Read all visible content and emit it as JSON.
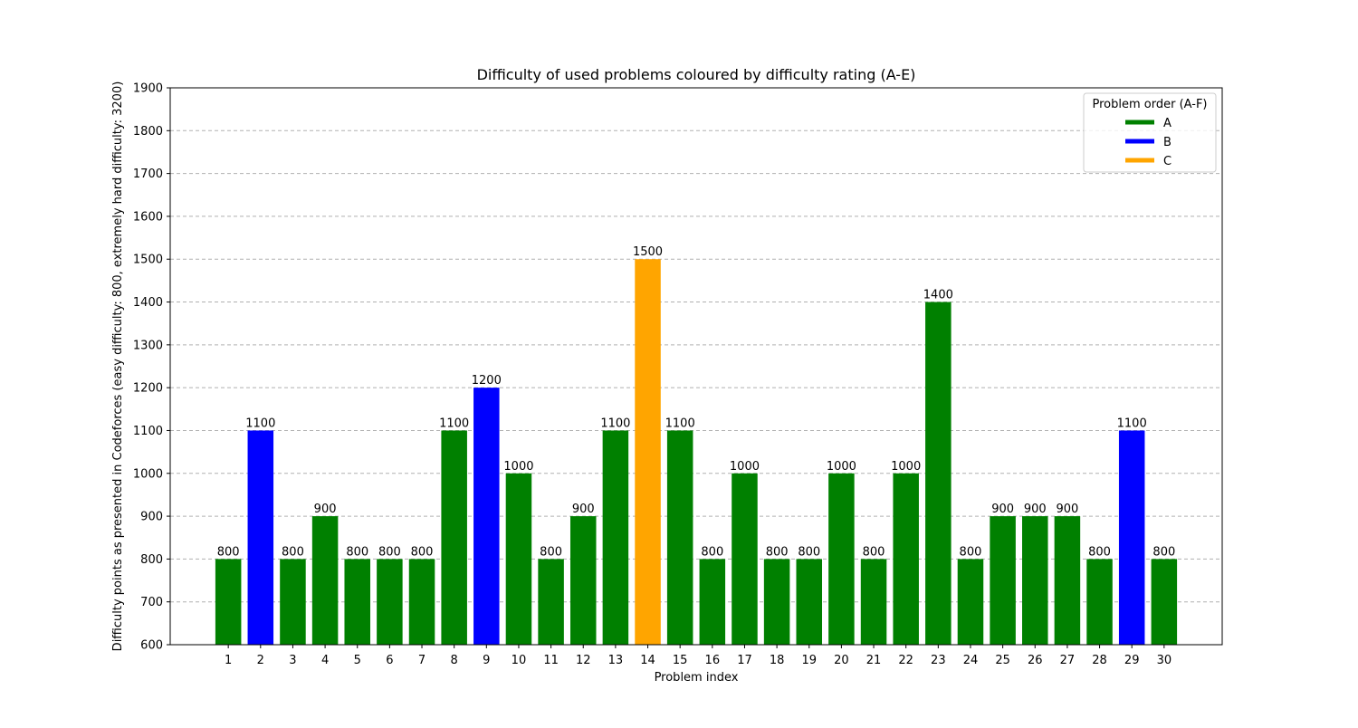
{
  "chart_data": {
    "type": "bar",
    "title": "Difficulty of used problems coloured by difficulty rating (A-E)",
    "xlabel": "Problem index",
    "ylabel": "Difficulty points as presented in Codeforces (easy difficulty: 800, extremely hard difficulty: 3200)",
    "ylim": [
      600,
      1900
    ],
    "yticks": [
      600,
      700,
      800,
      900,
      1000,
      1100,
      1200,
      1300,
      1400,
      1500,
      1600,
      1700,
      1800,
      1900
    ],
    "grid": "y-dashed",
    "categories": [
      "1",
      "2",
      "3",
      "4",
      "5",
      "6",
      "7",
      "8",
      "9",
      "10",
      "11",
      "12",
      "13",
      "14",
      "15",
      "16",
      "17",
      "18",
      "19",
      "20",
      "21",
      "22",
      "23",
      "24",
      "25",
      "26",
      "27",
      "28",
      "29",
      "30"
    ],
    "values": [
      800,
      1100,
      800,
      900,
      800,
      800,
      800,
      1100,
      1200,
      1000,
      800,
      900,
      1100,
      1500,
      1100,
      800,
      1000,
      800,
      800,
      1000,
      800,
      1000,
      1400,
      800,
      900,
      900,
      900,
      800,
      1100,
      800
    ],
    "order": [
      "A",
      "B",
      "A",
      "A",
      "A",
      "A",
      "A",
      "A",
      "B",
      "A",
      "A",
      "A",
      "A",
      "C",
      "A",
      "A",
      "A",
      "A",
      "A",
      "A",
      "A",
      "A",
      "A",
      "A",
      "A",
      "A",
      "A",
      "A",
      "B",
      "A"
    ],
    "colors": {
      "A": "#008000",
      "B": "#0000ff",
      "C": "#ffa500"
    },
    "legend": {
      "title": "Problem order (A-F)",
      "placement": "top-right",
      "entries": [
        "A",
        "B",
        "C"
      ]
    }
  }
}
